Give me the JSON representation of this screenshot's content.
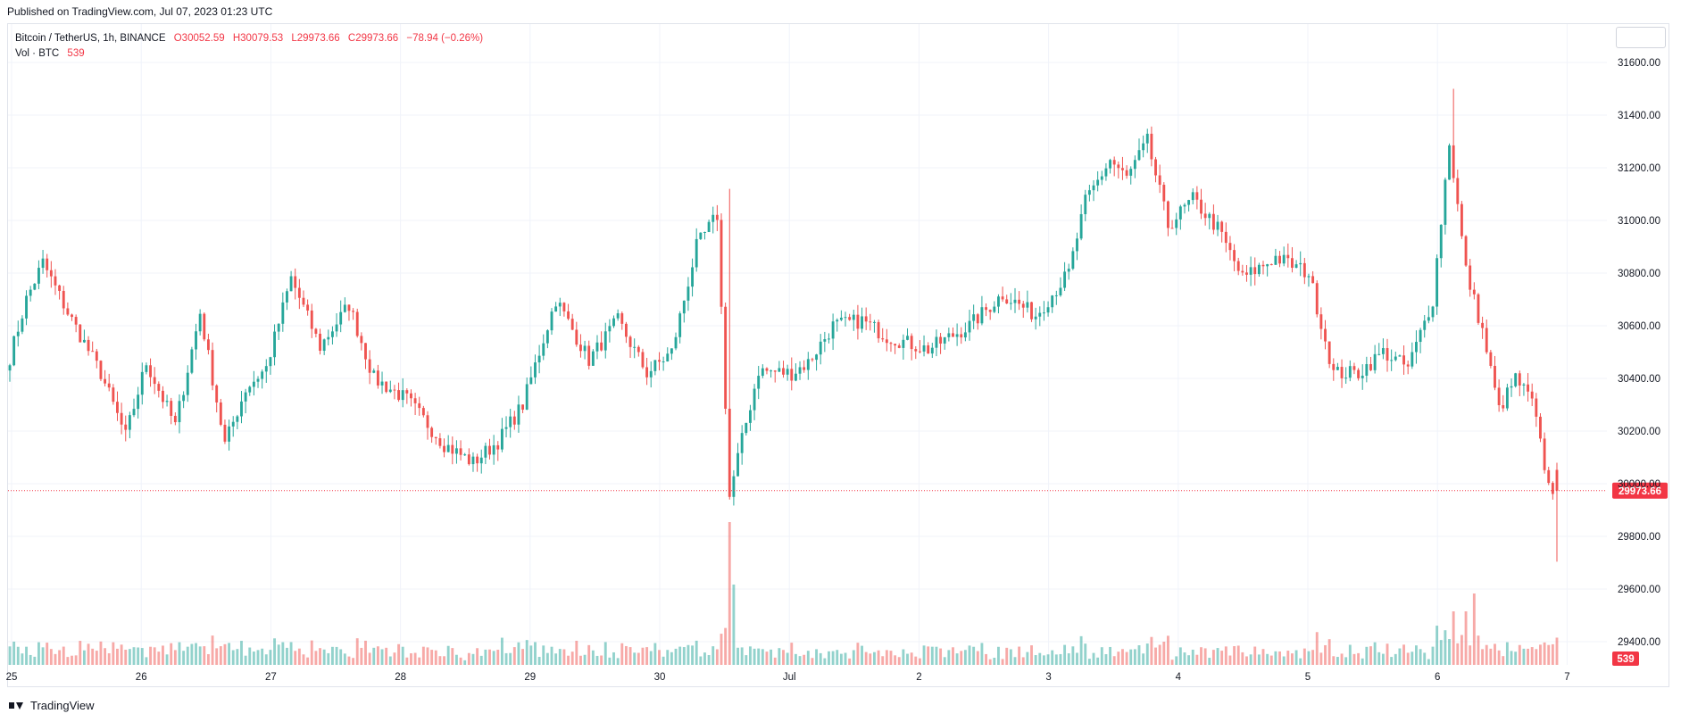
{
  "header": {
    "published": "Published on TradingView.com, Jul 07, 2023 01:23 UTC"
  },
  "legend": {
    "symbol": "Bitcoin / TetherUS, 1h, BINANCE",
    "open": "O30052.59",
    "high": "H30079.53",
    "low": "L29973.66",
    "close": "C29973.66",
    "change": "−78.94 (−0.26%)",
    "volume_label": "Vol · BTC",
    "volume_value": "539"
  },
  "footer": {
    "brand": "TradingView"
  },
  "colors": {
    "up": "#26a69a",
    "down": "#ef5350",
    "grid": "#f0f3fa",
    "price_line": "#f23645"
  },
  "chart_data": {
    "type": "candlestick",
    "interval": "1h",
    "ylim": [
      29300,
      31800
    ],
    "y_ticks": [
      "31600.00",
      "31400.00",
      "31200.00",
      "31000.00",
      "30800.00",
      "30600.00",
      "30400.00",
      "30200.00",
      "30000.00",
      "29800.00",
      "29600.00",
      "29400.00"
    ],
    "x_ticks": [
      "25",
      "26",
      "27",
      "28",
      "29",
      "30",
      "Jul",
      "2",
      "3",
      "4",
      "5",
      "6",
      "7"
    ],
    "last_price": 29973.66,
    "last_price_label": "29973.66",
    "last_volume_label": "539",
    "ohlc_keypoints": [
      [
        0,
        30480
      ],
      [
        4,
        30700
      ],
      [
        8,
        30840
      ],
      [
        14,
        30650
      ],
      [
        22,
        30420
      ],
      [
        28,
        30180
      ],
      [
        33,
        30460
      ],
      [
        40,
        30220
      ],
      [
        46,
        30650
      ],
      [
        52,
        30150
      ],
      [
        57,
        30360
      ],
      [
        62,
        30440
      ],
      [
        68,
        30780
      ],
      [
        75,
        30520
      ],
      [
        82,
        30680
      ],
      [
        88,
        30400
      ],
      [
        96,
        30320
      ],
      [
        105,
        30150
      ],
      [
        112,
        30080
      ],
      [
        118,
        30160
      ],
      [
        124,
        30300
      ],
      [
        132,
        30700
      ],
      [
        140,
        30470
      ],
      [
        147,
        30620
      ],
      [
        154,
        30420
      ],
      [
        160,
        30500
      ],
      [
        166,
        30900
      ],
      [
        171,
        31020
      ],
      [
        174,
        29950
      ],
      [
        176,
        30100
      ],
      [
        181,
        30430
      ],
      [
        189,
        30420
      ],
      [
        193,
        30460
      ],
      [
        199,
        30600
      ],
      [
        206,
        30620
      ],
      [
        212,
        30560
      ],
      [
        222,
        30510
      ],
      [
        232,
        30600
      ],
      [
        240,
        30720
      ],
      [
        248,
        30640
      ],
      [
        256,
        30800
      ],
      [
        260,
        31070
      ],
      [
        266,
        31230
      ],
      [
        270,
        31160
      ],
      [
        275,
        31300
      ],
      [
        280,
        30980
      ],
      [
        286,
        31080
      ],
      [
        292,
        30970
      ],
      [
        298,
        30780
      ],
      [
        306,
        30860
      ],
      [
        314,
        30800
      ],
      [
        320,
        30420
      ],
      [
        326,
        30420
      ],
      [
        332,
        30500
      ],
      [
        338,
        30440
      ],
      [
        344,
        30700
      ],
      [
        348,
        31300
      ],
      [
        352,
        30810
      ],
      [
        356,
        30580
      ],
      [
        360,
        30280
      ],
      [
        364,
        30400
      ],
      [
        368,
        30310
      ],
      [
        372,
        29990
      ],
      [
        374,
        29973.66
      ]
    ]
  }
}
